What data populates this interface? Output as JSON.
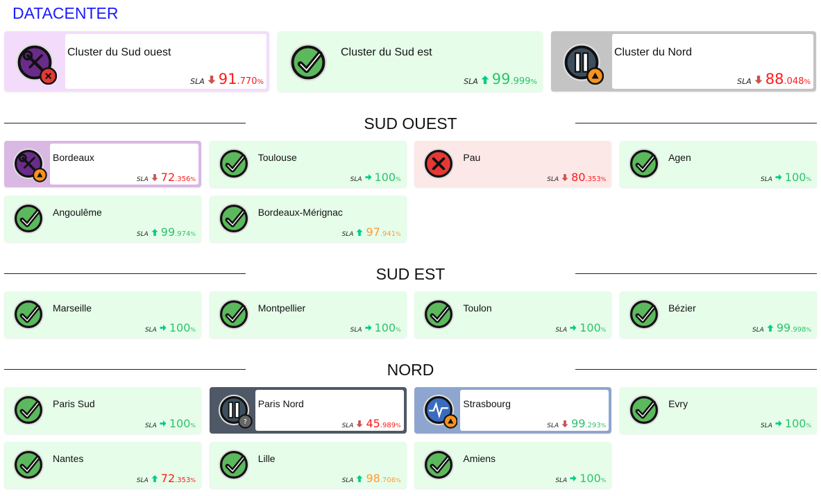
{
  "title": "DATACENTER",
  "sla_label": "SLA",
  "colors": {
    "ok_bg": "#e6fde9",
    "error_bg": "#fde8e8",
    "maintenance": "#d9b8e4",
    "paused": "#4f5866",
    "degraded": "#8ea6cf",
    "red": "#ff1a1a",
    "green": "#2ec26e",
    "orange": "#ff9933",
    "arrow_down": "#c9524f",
    "arrow_up": "#00cc88"
  },
  "clusters": [
    {
      "name": "Cluster du Sud ouest",
      "status": "maint",
      "icon": "wrench-screwdriver-icon",
      "badge": "error-badge-icon",
      "trend": "down",
      "sla_int": "91",
      "sla_dec": ".770",
      "sla_color": "red"
    },
    {
      "name": "Cluster du Sud est",
      "status": "ok",
      "icon": "check-icon",
      "badge": "",
      "trend": "up",
      "sla_int": "99",
      "sla_dec": ".999",
      "sla_color": "green"
    },
    {
      "name": "Cluster du Nord",
      "status": "paused",
      "icon": "pause-icon",
      "badge": "warning-badge-icon",
      "trend": "down",
      "sla_int": "88",
      "sla_dec": ".048",
      "sla_color": "red"
    }
  ],
  "sections": [
    {
      "title": "SUD OUEST",
      "tiles": [
        {
          "name": "Bordeaux",
          "status": "maint",
          "icon": "wrench-screwdriver-icon",
          "badge": "warning-badge-icon",
          "trend": "down",
          "sla_int": "72",
          "sla_dec": ".356",
          "sla_color": "red"
        },
        {
          "name": "Toulouse",
          "status": "ok",
          "icon": "check-icon",
          "badge": "",
          "trend": "right",
          "sla_int": "100",
          "sla_dec": "",
          "sla_color": "green"
        },
        {
          "name": "Pau",
          "status": "error",
          "icon": "x-icon",
          "badge": "",
          "trend": "down",
          "sla_int": "80",
          "sla_dec": ".353",
          "sla_color": "red"
        },
        {
          "name": "Agen",
          "status": "ok",
          "icon": "check-icon",
          "badge": "",
          "trend": "right",
          "sla_int": "100",
          "sla_dec": "",
          "sla_color": "green"
        },
        {
          "name": "Angoulême",
          "status": "ok",
          "icon": "check-icon",
          "badge": "",
          "trend": "up",
          "sla_int": "99",
          "sla_dec": ".974",
          "sla_color": "green"
        },
        {
          "name": "Bordeaux-Mérignac",
          "status": "ok",
          "icon": "check-icon",
          "badge": "",
          "trend": "up",
          "sla_int": "97",
          "sla_dec": ".941",
          "sla_color": "orange"
        }
      ]
    },
    {
      "title": "SUD EST",
      "tiles": [
        {
          "name": "Marseille",
          "status": "ok",
          "icon": "check-icon",
          "badge": "",
          "trend": "right",
          "sla_int": "100",
          "sla_dec": "",
          "sla_color": "green"
        },
        {
          "name": "Montpellier",
          "status": "ok",
          "icon": "check-icon",
          "badge": "",
          "trend": "right",
          "sla_int": "100",
          "sla_dec": "",
          "sla_color": "green"
        },
        {
          "name": "Toulon",
          "status": "ok",
          "icon": "check-icon",
          "badge": "",
          "trend": "right",
          "sla_int": "100",
          "sla_dec": "",
          "sla_color": "green"
        },
        {
          "name": "Bézier",
          "status": "ok",
          "icon": "check-icon",
          "badge": "",
          "trend": "up",
          "sla_int": "99",
          "sla_dec": ".998",
          "sla_color": "green"
        }
      ]
    },
    {
      "title": "NORD",
      "tiles": [
        {
          "name": "Paris Sud",
          "status": "ok",
          "icon": "check-icon",
          "badge": "",
          "trend": "right",
          "sla_int": "100",
          "sla_dec": "",
          "sla_color": "green"
        },
        {
          "name": "Paris Nord",
          "status": "paused",
          "icon": "pause-icon",
          "badge": "unknown-badge-icon",
          "trend": "down",
          "sla_int": "45",
          "sla_dec": ".989",
          "sla_color": "red"
        },
        {
          "name": "Strasbourg",
          "status": "degraded",
          "icon": "pulse-icon",
          "badge": "warning-badge-icon",
          "trend": "down",
          "sla_int": "99",
          "sla_dec": ".293",
          "sla_color": "green"
        },
        {
          "name": "Evry",
          "status": "ok",
          "icon": "check-icon",
          "badge": "",
          "trend": "right",
          "sla_int": "100",
          "sla_dec": "",
          "sla_color": "green"
        },
        {
          "name": "Nantes",
          "status": "ok",
          "icon": "check-icon",
          "badge": "",
          "trend": "up",
          "sla_int": "72",
          "sla_dec": ".353",
          "sla_color": "red"
        },
        {
          "name": "Lille",
          "status": "ok",
          "icon": "check-icon",
          "badge": "",
          "trend": "up",
          "sla_int": "98",
          "sla_dec": ".706",
          "sla_color": "orange"
        },
        {
          "name": "Amiens",
          "status": "ok",
          "icon": "check-icon",
          "badge": "",
          "trend": "right",
          "sla_int": "100",
          "sla_dec": "",
          "sla_color": "green"
        }
      ]
    }
  ]
}
